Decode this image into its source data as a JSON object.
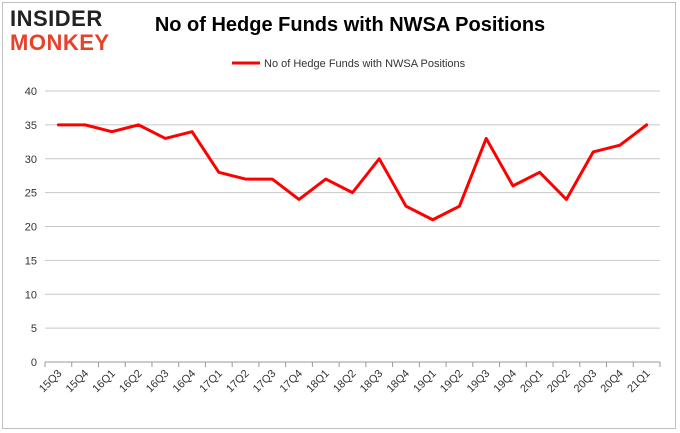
{
  "logo": {
    "top": "INSIDER",
    "bottom": "MONKEY"
  },
  "chart_data": {
    "type": "line",
    "title": "No of Hedge Funds with NWSA Positions",
    "xlabel": "",
    "ylabel": "",
    "categories": [
      "15Q3",
      "15Q4",
      "16Q1",
      "16Q2",
      "16Q3",
      "16Q4",
      "17Q1",
      "17Q2",
      "17Q3",
      "17Q4",
      "18Q1",
      "18Q2",
      "18Q3",
      "18Q4",
      "19Q1",
      "19Q2",
      "19Q3",
      "19Q4",
      "20Q1",
      "20Q2",
      "20Q3",
      "20Q4",
      "21Q1"
    ],
    "series": [
      {
        "name": "No of Hedge Funds with NWSA Positions",
        "values": [
          35,
          35,
          34,
          35,
          33,
          34,
          28,
          27,
          27,
          24,
          27,
          25,
          30,
          23,
          21,
          23,
          33,
          26,
          28,
          24,
          31,
          32,
          35
        ],
        "color": "#ff0000"
      }
    ],
    "ylim": [
      0,
      40
    ],
    "yticks": [
      0,
      5,
      10,
      15,
      20,
      25,
      30,
      35,
      40
    ],
    "grid": true,
    "legend": "top-center"
  }
}
